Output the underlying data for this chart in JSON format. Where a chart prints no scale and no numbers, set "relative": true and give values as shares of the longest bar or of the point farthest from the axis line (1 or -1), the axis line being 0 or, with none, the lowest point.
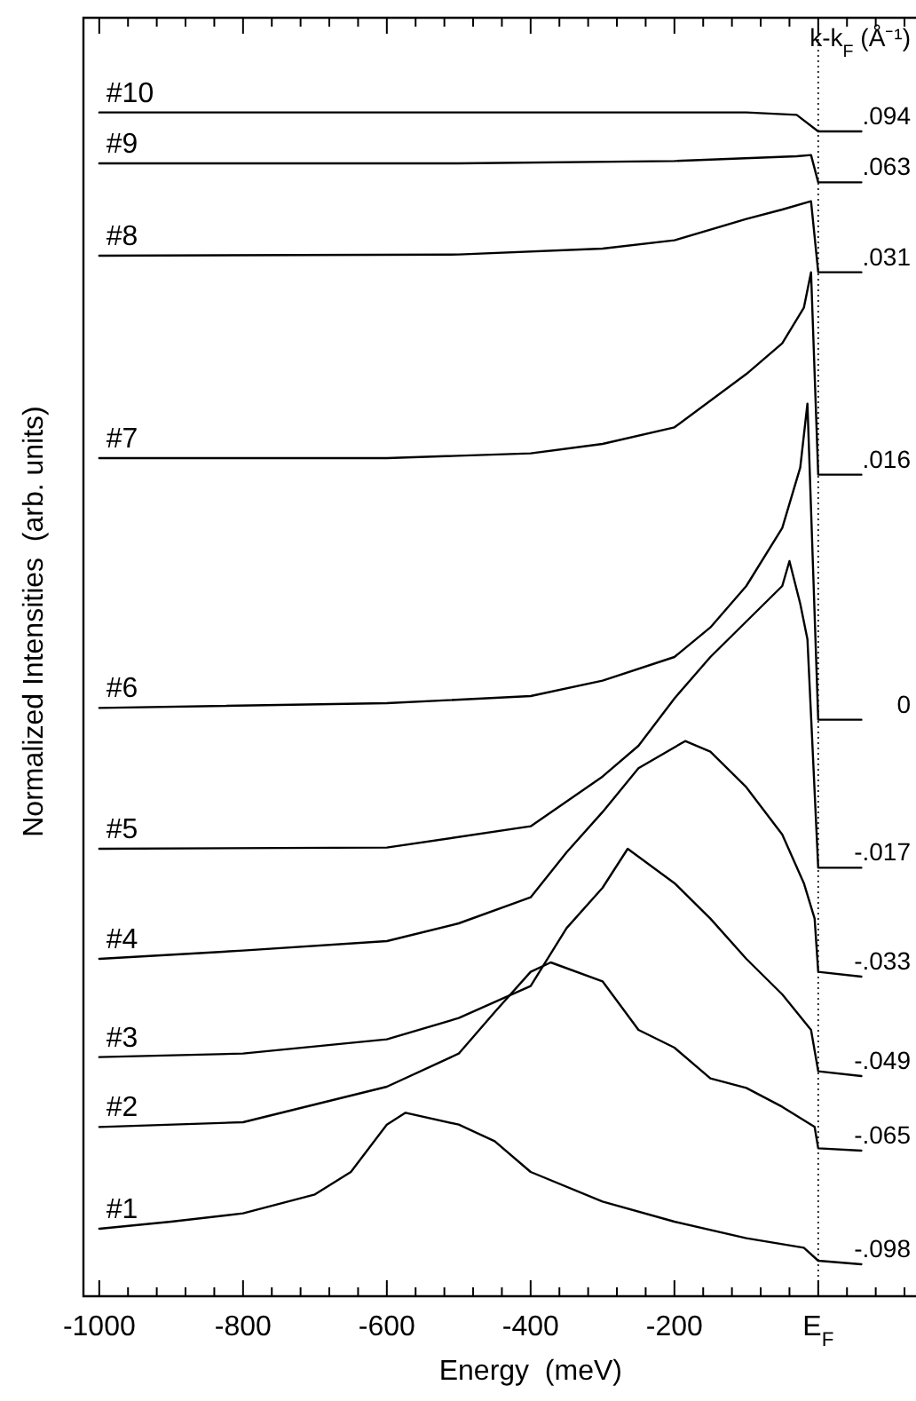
{
  "chart_data": {
    "type": "line",
    "relative": true,
    "xlabel": "Energy  (meV)",
    "ylabel": "Normalized Intensities  (arb. units)",
    "xlim": [
      -1022,
      136
    ],
    "xticks": [
      -1000,
      {
        "value": -960,
        "label": null
      },
      {
        "value": -920,
        "label": null
      },
      {
        "value": -880,
        "label": null
      },
      {
        "value": -840,
        "label": null
      },
      -800,
      {
        "value": -760,
        "label": null
      },
      {
        "value": -720,
        "label": null
      },
      {
        "value": -680,
        "label": null
      },
      {
        "value": -640,
        "label": null
      },
      -600,
      {
        "value": -560,
        "label": null
      },
      {
        "value": -520,
        "label": null
      },
      {
        "value": -480,
        "label": null
      },
      {
        "value": -440,
        "label": null
      },
      -400,
      {
        "value": -360,
        "label": null
      },
      {
        "value": -320,
        "label": null
      },
      {
        "value": -280,
        "label": null
      },
      {
        "value": -240,
        "label": null
      },
      -200,
      {
        "value": -160,
        "label": null
      },
      {
        "value": -120,
        "label": null
      },
      {
        "value": -80,
        "label": null
      },
      {
        "value": -40,
        "label": null
      },
      {
        "value": 0,
        "label": "E$_{F}$"
      },
      {
        "value": 40,
        "label": null
      },
      {
        "value": 80,
        "label": null
      },
      {
        "value": 120,
        "label": null
      }
    ],
    "grid": false,
    "marker": "none",
    "line_style": "solid",
    "series": [
      {
        "name": "#1",
        "color": "#000000",
        "x": [
          -1000,
          -900,
          -800,
          -700,
          -650,
          -600,
          -574,
          -500,
          -450,
          -400,
          -300,
          -200,
          -100,
          -20,
          0,
          60
        ],
        "values": [
          0.057,
          0.063,
          0.07,
          0.086,
          0.105,
          0.145,
          0.155,
          0.145,
          0.131,
          0.105,
          0.08,
          0.063,
          0.049,
          0.041,
          0.03,
          0.027
        ]
      },
      {
        "name": "#2",
        "color": "#000000",
        "x": [
          -1000,
          -800,
          -600,
          -500,
          -450,
          -400,
          -372,
          -300,
          -250,
          -200,
          -150,
          -100,
          -50,
          -5,
          0,
          60
        ],
        "values": [
          0.143,
          0.147,
          0.177,
          0.205,
          0.24,
          0.274,
          0.282,
          0.266,
          0.225,
          0.21,
          0.184,
          0.176,
          0.16,
          0.143,
          0.125,
          0.123
        ]
      },
      {
        "name": "#3",
        "color": "#000000",
        "x": [
          -1000,
          -800,
          -600,
          -500,
          -400,
          -350,
          -300,
          -265,
          -200,
          -150,
          -100,
          -50,
          -10,
          0,
          60
        ],
        "values": [
          0.202,
          0.205,
          0.217,
          0.235,
          0.262,
          0.311,
          0.345,
          0.378,
          0.349,
          0.319,
          0.285,
          0.255,
          0.225,
          0.19,
          0.186
        ]
      },
      {
        "name": "#4",
        "color": "#000000",
        "x": [
          -1000,
          -800,
          -600,
          -500,
          -400,
          -350,
          -300,
          -250,
          -185,
          -150,
          -100,
          -50,
          -20,
          -5,
          0,
          60
        ],
        "values": [
          0.285,
          0.292,
          0.3,
          0.315,
          0.337,
          0.375,
          0.409,
          0.446,
          0.469,
          0.46,
          0.43,
          0.39,
          0.349,
          0.319,
          0.274,
          0.27
        ]
      },
      {
        "name": "#5",
        "color": "#000000",
        "x": [
          -1000,
          -600,
          -400,
          -300,
          -250,
          -200,
          -150,
          -100,
          -50,
          -40,
          -25,
          -15,
          0,
          60
        ],
        "values": [
          0.378,
          0.379,
          0.397,
          0.439,
          0.465,
          0.505,
          0.54,
          0.57,
          0.6,
          0.621,
          0.585,
          0.555,
          0.362,
          0.362
        ]
      },
      {
        "name": "#6",
        "color": "#000000",
        "x": [
          -1000,
          -600,
          -400,
          -300,
          -200,
          -150,
          -100,
          -50,
          -25,
          -15,
          0,
          60
        ],
        "values": [
          0.497,
          0.501,
          0.507,
          0.52,
          0.54,
          0.565,
          0.6,
          0.649,
          0.7,
          0.754,
          0.487,
          0.487
        ]
      },
      {
        "name": "#7",
        "color": "#000000",
        "x": [
          -1000,
          -600,
          -400,
          -300,
          -200,
          -100,
          -50,
          -20,
          -10,
          0,
          60
        ],
        "values": [
          0.708,
          0.708,
          0.712,
          0.72,
          0.734,
          0.779,
          0.805,
          0.835,
          0.865,
          0.694,
          0.694
        ]
      },
      {
        "name": "#8",
        "color": "#000000",
        "x": [
          -1000,
          -500,
          -300,
          -200,
          -100,
          -50,
          -10,
          0,
          60
        ],
        "values": [
          0.879,
          0.88,
          0.885,
          0.892,
          0.91,
          0.918,
          0.925,
          0.865,
          0.865
        ]
      },
      {
        "name": "#9",
        "color": "#000000",
        "x": [
          -1000,
          -500,
          -200,
          -30,
          -10,
          0,
          60
        ],
        "values": [
          0.957,
          0.957,
          0.959,
          0.963,
          0.964,
          0.941,
          0.941
        ]
      },
      {
        "name": "#10",
        "color": "#000000",
        "x": [
          -1000,
          -500,
          -100,
          -30,
          0,
          60
        ],
        "values": [
          1.0,
          1.0,
          1.0,
          0.998,
          0.984,
          0.984
        ]
      }
    ],
    "ref_lines": [
      {
        "axis": "x",
        "value": 0,
        "color": "#000000",
        "line_style": "dotted"
      }
    ],
    "annotations": [
      "k-k$_{F}$ (Å⁻¹)",
      "-.098",
      "-.065",
      "-.049",
      "-.033",
      "-.017",
      "0",
      ".016",
      ".031",
      ".063",
      ".094"
    ]
  }
}
